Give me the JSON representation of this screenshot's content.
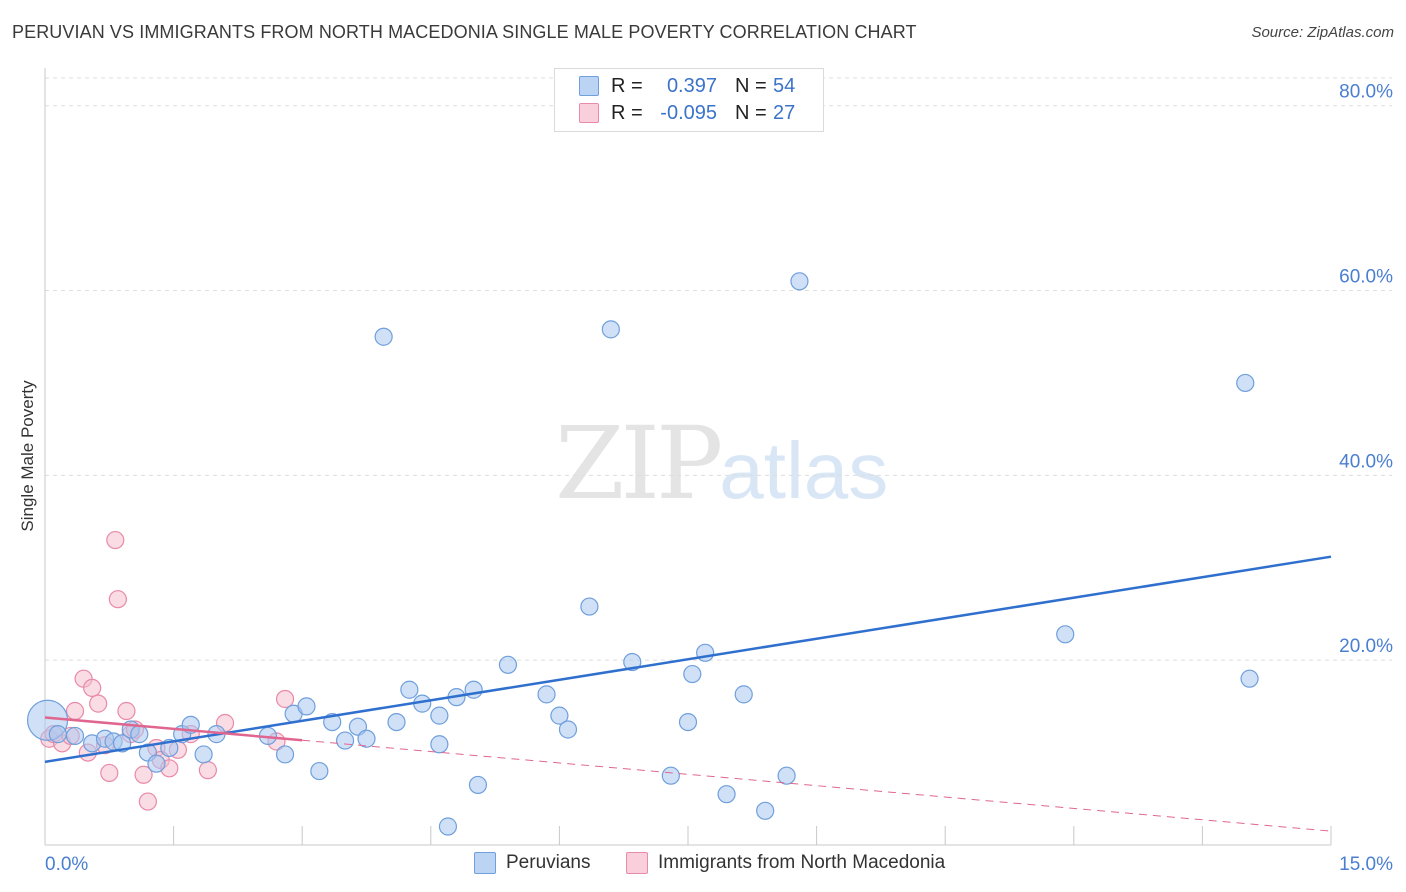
{
  "title": "PERUVIAN VS IMMIGRANTS FROM NORTH MACEDONIA SINGLE MALE POVERTY CORRELATION CHART",
  "source": "Source: ZipAtlas.com",
  "watermark": {
    "zip": "ZIP",
    "atlas": "atlas"
  },
  "colors": {
    "blue_fill": "#aac8f0",
    "blue_stroke": "#6f9fdc",
    "blue_line": "#2f6fce",
    "pink_fill": "#f6bfd0",
    "pink_stroke": "#e98aa8",
    "pink_line": "#e0668f",
    "axis_text": "#4a7fd0",
    "grid": "#dddddd"
  },
  "legend_top": [
    {
      "r_label": "R =",
      "r_value": "0.397",
      "n_label": "N =",
      "n_value": "54"
    },
    {
      "r_label": "R =",
      "r_value": "-0.095",
      "n_label": "N =",
      "n_value": "27"
    }
  ],
  "legend_bottom": [
    "Peruvians",
    "Immigrants from North Macedonia"
  ],
  "chart_data": {
    "type": "scatter",
    "title": "PERUVIAN VS IMMIGRANTS FROM NORTH MACEDONIA SINGLE MALE POVERTY CORRELATION CHART",
    "xlabel": "",
    "ylabel": "Single Male Poverty",
    "xlim": [
      0,
      15
    ],
    "ylim": [
      0,
      83
    ],
    "x_tick_labels": [
      "0.0%",
      "15.0%"
    ],
    "y_ticks": [
      20,
      40,
      60,
      80
    ],
    "y_tick_labels": [
      "20.0%",
      "40.0%",
      "60.0%",
      "80.0%"
    ],
    "grid": true,
    "series": [
      {
        "name": "Peruvians",
        "r": 0.397,
        "n": 54,
        "points": [
          {
            "x": 0.03,
            "y": 13.5,
            "size": "large"
          },
          {
            "x": 0.15,
            "y": 12.0
          },
          {
            "x": 0.35,
            "y": 11.8
          },
          {
            "x": 0.55,
            "y": 11.0
          },
          {
            "x": 0.7,
            "y": 11.5
          },
          {
            "x": 0.8,
            "y": 11.2
          },
          {
            "x": 0.9,
            "y": 11.0
          },
          {
            "x": 1.0,
            "y": 12.5
          },
          {
            "x": 1.1,
            "y": 12.0
          },
          {
            "x": 1.2,
            "y": 10.0
          },
          {
            "x": 1.3,
            "y": 8.8
          },
          {
            "x": 1.45,
            "y": 10.5
          },
          {
            "x": 1.6,
            "y": 12.0
          },
          {
            "x": 1.7,
            "y": 13.0
          },
          {
            "x": 1.85,
            "y": 9.8
          },
          {
            "x": 2.0,
            "y": 12.0
          },
          {
            "x": 2.6,
            "y": 11.8
          },
          {
            "x": 2.8,
            "y": 9.8
          },
          {
            "x": 2.9,
            "y": 14.2
          },
          {
            "x": 3.05,
            "y": 15.0
          },
          {
            "x": 3.2,
            "y": 8.0
          },
          {
            "x": 3.35,
            "y": 13.3
          },
          {
            "x": 3.5,
            "y": 11.3
          },
          {
            "x": 3.65,
            "y": 12.8
          },
          {
            "x": 3.75,
            "y": 11.5
          },
          {
            "x": 3.95,
            "y": 55.0
          },
          {
            "x": 4.1,
            "y": 13.3
          },
          {
            "x": 4.25,
            "y": 16.8
          },
          {
            "x": 4.4,
            "y": 15.3
          },
          {
            "x": 4.6,
            "y": 14.0
          },
          {
            "x": 4.6,
            "y": 10.9
          },
          {
            "x": 4.7,
            "y": 2.0
          },
          {
            "x": 4.8,
            "y": 16.0
          },
          {
            "x": 5.0,
            "y": 16.8
          },
          {
            "x": 5.05,
            "y": 6.5
          },
          {
            "x": 5.4,
            "y": 19.5
          },
          {
            "x": 5.85,
            "y": 16.3
          },
          {
            "x": 6.0,
            "y": 14.0
          },
          {
            "x": 6.1,
            "y": 12.5
          },
          {
            "x": 6.35,
            "y": 25.8
          },
          {
            "x": 6.6,
            "y": 55.8
          },
          {
            "x": 6.85,
            "y": 19.8
          },
          {
            "x": 7.3,
            "y": 7.5
          },
          {
            "x": 7.5,
            "y": 13.3
          },
          {
            "x": 7.55,
            "y": 18.5
          },
          {
            "x": 7.7,
            "y": 20.8
          },
          {
            "x": 7.95,
            "y": 5.5
          },
          {
            "x": 8.15,
            "y": 16.3
          },
          {
            "x": 8.4,
            "y": 3.7
          },
          {
            "x": 8.65,
            "y": 7.5
          },
          {
            "x": 8.8,
            "y": 61.0
          },
          {
            "x": 11.9,
            "y": 22.8
          },
          {
            "x": 14.0,
            "y": 50.0
          },
          {
            "x": 14.05,
            "y": 18.0
          }
        ],
        "trend": {
          "x_start": 0.0,
          "y_start": 9.0,
          "x_end": 15.0,
          "y_end": 31.2,
          "style": "solid"
        }
      },
      {
        "name": "Immigrants from North Macedonia",
        "r": -0.095,
        "n": 27,
        "points": [
          {
            "x": 0.05,
            "y": 11.5
          },
          {
            "x": 0.1,
            "y": 12.0
          },
          {
            "x": 0.2,
            "y": 11.0
          },
          {
            "x": 0.3,
            "y": 11.8
          },
          {
            "x": 0.35,
            "y": 14.5
          },
          {
            "x": 0.45,
            "y": 18.0
          },
          {
            "x": 0.5,
            "y": 10.0
          },
          {
            "x": 0.55,
            "y": 17.0
          },
          {
            "x": 0.62,
            "y": 15.3
          },
          {
            "x": 0.7,
            "y": 10.8
          },
          {
            "x": 0.75,
            "y": 7.8
          },
          {
            "x": 0.82,
            "y": 33.0
          },
          {
            "x": 0.85,
            "y": 26.6
          },
          {
            "x": 0.95,
            "y": 14.5
          },
          {
            "x": 1.0,
            "y": 12.0
          },
          {
            "x": 1.05,
            "y": 12.5
          },
          {
            "x": 1.15,
            "y": 7.6
          },
          {
            "x": 1.2,
            "y": 4.7
          },
          {
            "x": 1.3,
            "y": 10.5
          },
          {
            "x": 1.35,
            "y": 9.2
          },
          {
            "x": 1.45,
            "y": 8.3
          },
          {
            "x": 1.55,
            "y": 10.3
          },
          {
            "x": 1.7,
            "y": 12.0
          },
          {
            "x": 1.9,
            "y": 8.1
          },
          {
            "x": 2.1,
            "y": 13.2
          },
          {
            "x": 2.7,
            "y": 11.2
          },
          {
            "x": 2.8,
            "y": 15.8
          }
        ],
        "trend": {
          "x_start": 0.0,
          "y_start": 13.8,
          "x_solid_end": 3.0,
          "x_end": 15.0,
          "y_end": 1.5,
          "style": "solid then dashed"
        }
      }
    ]
  }
}
